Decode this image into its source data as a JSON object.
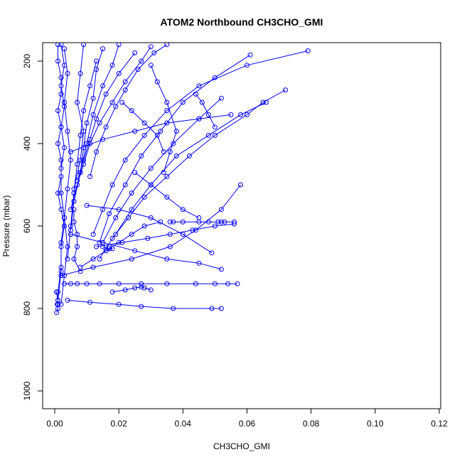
{
  "chart_data": {
    "type": "line",
    "title": "ATOM2 Northbound CH3CHO_GMI",
    "xlabel": "CH3CHO_GMI",
    "ylabel": "Pressure (mbar)",
    "xlim": [
      0,
      0.12
    ],
    "ylim": [
      1040,
      160
    ],
    "y_reversed": true,
    "grid": false,
    "legend": "none",
    "color": "#0000ff",
    "marker": "open-circle",
    "xticks": [
      "0.00",
      "0.02",
      "0.04",
      "0.06",
      "0.08",
      "0.10",
      "0.12"
    ],
    "yticks": [
      "200",
      "400",
      "600",
      "800",
      "1000"
    ],
    "series": [
      {
        "x": [
          0.001,
          0.001,
          0.002,
          0.002,
          0.001,
          0.002,
          0.001,
          0.002,
          0.002,
          0.001,
          0.002,
          0.003,
          0.002,
          0.002,
          0.001,
          0.001
        ],
        "y": [
          160,
          200,
          240,
          280,
          320,
          360,
          400,
          440,
          480,
          520,
          560,
          600,
          650,
          700,
          760,
          790
        ]
      },
      {
        "x": [
          0.002,
          0.003,
          0.002,
          0.003,
          0.002,
          0.003,
          0.002,
          0.002,
          0.003,
          0.002,
          0.002,
          0.001
        ],
        "y": [
          160,
          210,
          260,
          310,
          360,
          410,
          460,
          520,
          580,
          640,
          710,
          780
        ]
      },
      {
        "x": [
          0.003,
          0.004,
          0.003,
          0.004,
          0.005,
          0.004,
          0.003,
          0.004,
          0.003,
          0.002
        ],
        "y": [
          170,
          230,
          300,
          370,
          440,
          510,
          580,
          650,
          720,
          790
        ]
      },
      {
        "x": [
          0.0005,
          0.001,
          0.0008,
          0.001,
          0.0006
        ],
        "y": [
          760,
          780,
          790,
          800,
          810
        ]
      },
      {
        "x": [
          0.013,
          0.011,
          0.009,
          0.008,
          0.007,
          0.006,
          0.005,
          0.004
        ],
        "y": [
          200,
          260,
          320,
          380,
          450,
          520,
          600,
          680
        ]
      },
      {
        "x": [
          0.03,
          0.027,
          0.022,
          0.018,
          0.014,
          0.011,
          0.009,
          0.007,
          0.005
        ],
        "y": [
          165,
          200,
          250,
          300,
          350,
          400,
          450,
          500,
          560
        ]
      },
      {
        "x": [
          0.02,
          0.018,
          0.015,
          0.012,
          0.01,
          0.008,
          0.006
        ],
        "y": [
          160,
          210,
          260,
          330,
          400,
          470,
          540
        ]
      },
      {
        "x": [
          0.025,
          0.02,
          0.016,
          0.013,
          0.011,
          0.009,
          0.007
        ],
        "y": [
          180,
          230,
          280,
          340,
          390,
          440,
          490
        ]
      },
      {
        "x": [
          0.015,
          0.013,
          0.012,
          0.01,
          0.009,
          0.008,
          0.006,
          0.005
        ],
        "y": [
          170,
          220,
          290,
          350,
          410,
          470,
          540,
          610
        ]
      },
      {
        "x": [
          0.035,
          0.031,
          0.026,
          0.022,
          0.019,
          0.016,
          0.013,
          0.011
        ],
        "y": [
          160,
          180,
          220,
          270,
          310,
          360,
          420,
          480
        ]
      },
      {
        "x": [
          0.009,
          0.008,
          0.007,
          0.009,
          0.008,
          0.006
        ],
        "y": [
          160,
          230,
          300,
          370,
          440,
          510
        ]
      },
      {
        "x": [
          0.079,
          0.06,
          0.045,
          0.035,
          0.028,
          0.022,
          0.018,
          0.015,
          0.012
        ],
        "y": [
          175,
          210,
          260,
          320,
          380,
          440,
          500,
          560,
          620
        ]
      },
      {
        "x": [
          0.061,
          0.05,
          0.04,
          0.033,
          0.027,
          0.022,
          0.017,
          0.014
        ],
        "y": [
          185,
          240,
          300,
          370,
          430,
          500,
          570,
          640
        ]
      },
      {
        "x": [
          0.052,
          0.045,
          0.037,
          0.03,
          0.024,
          0.019,
          0.015
        ],
        "y": [
          290,
          340,
          400,
          460,
          520,
          580,
          640
        ]
      },
      {
        "x": [
          0.066,
          0.058,
          0.048,
          0.038,
          0.03,
          0.024,
          0.019
        ],
        "y": [
          300,
          330,
          380,
          430,
          500,
          560,
          620
        ]
      },
      {
        "x": [
          0.072,
          0.065,
          0.06,
          0.05,
          0.042,
          0.035,
          0.028,
          0.023,
          0.018,
          0.014
        ],
        "y": [
          270,
          300,
          330,
          380,
          430,
          480,
          530,
          580,
          630,
          680
        ]
      },
      {
        "x": [
          0.005,
          0.015,
          0.025,
          0.035,
          0.045,
          0.055
        ],
        "y": [
          420,
          390,
          370,
          350,
          340,
          330
        ]
      },
      {
        "x": [
          0.002,
          0.012,
          0.024,
          0.036,
          0.044,
          0.052,
          0.058
        ],
        "y": [
          720,
          700,
          680,
          650,
          610,
          560,
          500
        ]
      },
      {
        "x": [
          0.008,
          0.012,
          0.016,
          0.02,
          0.024,
          0.028,
          0.033
        ],
        "y": [
          700,
          680,
          660,
          640,
          620,
          600,
          590
        ]
      },
      {
        "x": [
          0.036,
          0.037,
          0.04,
          0.045,
          0.048,
          0.051,
          0.052,
          0.053,
          0.056
        ],
        "y": [
          590,
          590,
          590,
          590,
          590,
          590,
          590,
          590,
          590
        ]
      },
      {
        "x": [
          0.003,
          0.005,
          0.007,
          0.01,
          0.014,
          0.02,
          0.027,
          0.035,
          0.044,
          0.05,
          0.054,
          0.057
        ],
        "y": [
          740,
          740,
          740,
          740,
          740,
          740,
          740,
          740,
          740,
          740,
          740,
          740
        ]
      },
      {
        "x": [
          0.004,
          0.011,
          0.02,
          0.027,
          0.037,
          0.049,
          0.052
        ],
        "y": [
          780,
          785,
          790,
          795,
          800,
          800,
          800
        ]
      },
      {
        "x": [
          0.018,
          0.022,
          0.025,
          0.027,
          0.028,
          0.03
        ],
        "y": [
          760,
          755,
          750,
          748,
          750,
          755
        ]
      },
      {
        "x": [
          0.013,
          0.021,
          0.029,
          0.036,
          0.043,
          0.05,
          0.056
        ],
        "y": [
          650,
          640,
          630,
          620,
          610,
          600,
          595
        ]
      },
      {
        "x": [
          0.015,
          0.017,
          0.016,
          0.018,
          0.017
        ],
        "y": [
          650,
          655,
          660,
          655,
          650
        ]
      },
      {
        "x": [
          0.006,
          0.006,
          0.007,
          0.007,
          0.006,
          0.008
        ],
        "y": [
          560,
          590,
          620,
          650,
          680,
          710
        ]
      },
      {
        "x": [
          0.01,
          0.02,
          0.03,
          0.04,
          0.049
        ],
        "y": [
          550,
          560,
          580,
          620,
          665
        ]
      },
      {
        "x": [
          0.005,
          0.015,
          0.025,
          0.035,
          0.045,
          0.052
        ],
        "y": [
          620,
          640,
          660,
          680,
          690,
          705
        ]
      },
      {
        "x": [
          0.03,
          0.032,
          0.035,
          0.038,
          0.036,
          0.034
        ],
        "y": [
          210,
          250,
          300,
          370,
          420,
          470
        ]
      },
      {
        "x": [
          0.021,
          0.024,
          0.028,
          0.032,
          0.034
        ],
        "y": [
          300,
          320,
          350,
          380,
          420
        ]
      },
      {
        "x": [
          0.044,
          0.046,
          0.048,
          0.05
        ],
        "y": [
          280,
          300,
          330,
          360
        ]
      },
      {
        "x": [
          0.025,
          0.03,
          0.035,
          0.04,
          0.045
        ],
        "y": [
          470,
          500,
          530,
          560,
          580
        ]
      }
    ]
  }
}
